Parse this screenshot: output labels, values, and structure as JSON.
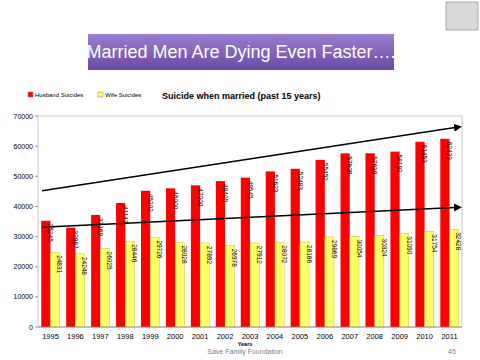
{
  "chart_data": {
    "type": "bar",
    "title": "Married Men Are Dying Even Faster….",
    "subtitle": "Suicide when married (past 15 years)",
    "x_label": "Years",
    "footer": "Save Family Foundation",
    "page": "45",
    "categories": [
      "1995",
      "1996",
      "1997",
      "1998",
      "1999",
      "2000",
      "2001",
      "2002",
      "2003",
      "2004",
      "2005",
      "2006",
      "2007",
      "2008",
      "2009",
      "2010",
      "2011"
    ],
    "series": [
      {
        "name": "Husband Suicides",
        "color": "#ff0000",
        "values": [
          35245,
          32967,
          37169,
          41143,
          45202,
          46000,
          47000,
          48409,
          49545,
          51623,
          52483,
          55452,
          57609,
          57639,
          58192,
          61453,
          62433
        ]
      },
      {
        "name": "Wife Suicides",
        "color": "#ffff66",
        "values": [
          24831,
          24248,
          26025,
          28446,
          29726,
          28028,
          27892,
          26978,
          27912,
          28072,
          28186,
          29869,
          30054,
          30324,
          31090,
          31754,
          32428
        ]
      }
    ],
    "ylim": [
      0,
      70000
    ],
    "yticks": [
      0,
      10000,
      20000,
      30000,
      40000,
      50000,
      60000,
      70000
    ],
    "grid": false,
    "legend": "top-left",
    "data_labels": true
  }
}
